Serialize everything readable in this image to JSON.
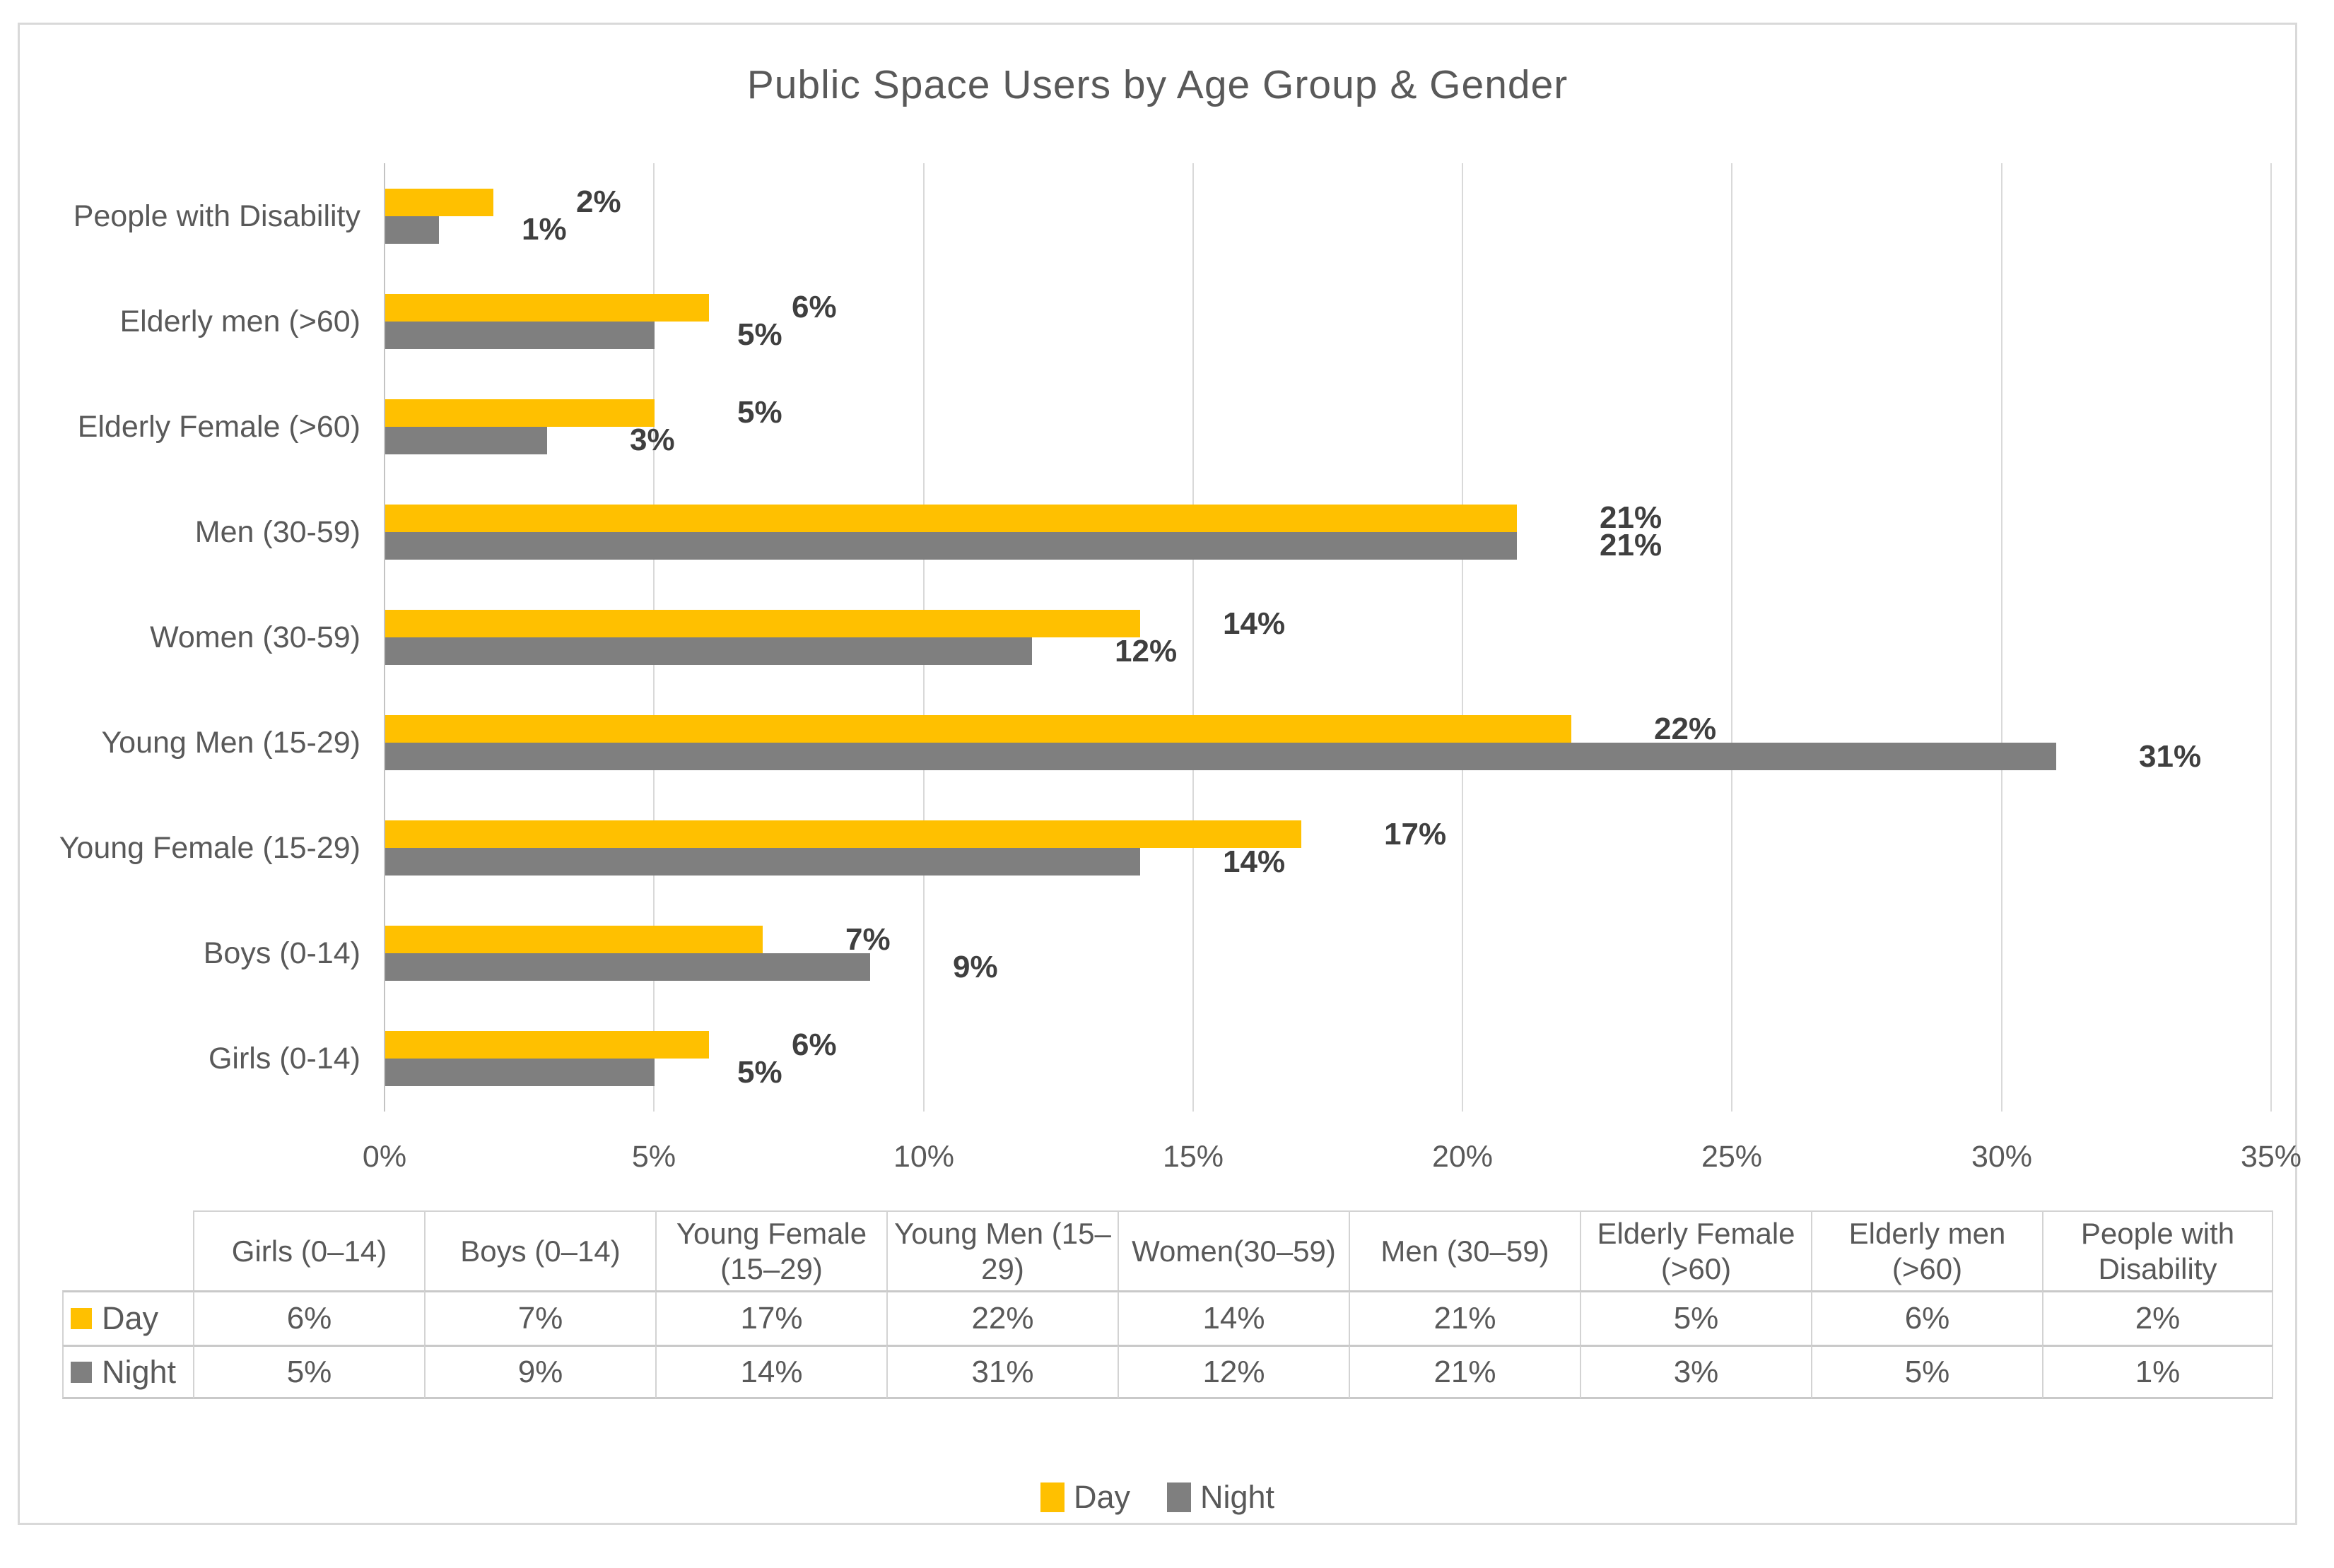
{
  "figure": {
    "background": "#FFFFFF",
    "border_color": "#D9D9D9"
  },
  "chart_data": {
    "type": "bar",
    "orientation": "horizontal",
    "title": "Public Space Users by Age Group & Gender",
    "categories": [
      "People with Disability",
      "Elderly men (>60)",
      "Elderly Female (>60)",
      "Men (30-59)",
      "Women (30-59)",
      "Young Men (15-29)",
      "Young Female (15-29)",
      "Boys (0-14)",
      "Girls (0-14)"
    ],
    "series": [
      {
        "name": "Day",
        "color": "#FFC000",
        "values": [
          2,
          6,
          5,
          21,
          14,
          22,
          17,
          7,
          6
        ],
        "labels": [
          "2%",
          "6%",
          "5%",
          "21%",
          "14%",
          "22%",
          "17%",
          "7%",
          "6%"
        ]
      },
      {
        "name": "Night",
        "color": "#7F7F7F",
        "values": [
          1,
          5,
          3,
          21,
          12,
          31,
          14,
          9,
          5
        ],
        "labels": [
          "1%",
          "5%",
          "3%",
          "21%",
          "12%",
          "31%",
          "14%",
          "9%",
          "5%"
        ]
      }
    ],
    "xlim": [
      0,
      35
    ],
    "x_ticks": [
      "0%",
      "5%",
      "10%",
      "15%",
      "20%",
      "25%",
      "30%",
      "35%"
    ],
    "grid": true,
    "gridline_color": "#D9D9D9",
    "text_color": "#595959",
    "data_label_color": "#3F3F3F",
    "legend_position": "bottom"
  },
  "data_table": {
    "columns": [
      "Girls (0–14)",
      "Boys (0–14)",
      "Young Female (15–29)",
      "Young Men (15–29)",
      "Women(30–59)",
      "Men (30–59)",
      "Elderly Female (>60)",
      "Elderly men (>60)",
      "People with Disability"
    ],
    "rows": [
      {
        "name": "Day",
        "swatch_color": "#FFC000",
        "values": [
          "6%",
          "7%",
          "17%",
          "22%",
          "14%",
          "21%",
          "5%",
          "6%",
          "2%"
        ]
      },
      {
        "name": "Night",
        "swatch_color": "#7F7F7F",
        "values": [
          "5%",
          "9%",
          "14%",
          "31%",
          "12%",
          "21%",
          "3%",
          "5%",
          "1%"
        ]
      }
    ]
  },
  "legend": {
    "items": [
      {
        "label": "Day",
        "color": "#FFC000"
      },
      {
        "label": "Night",
        "color": "#7F7F7F"
      }
    ]
  }
}
